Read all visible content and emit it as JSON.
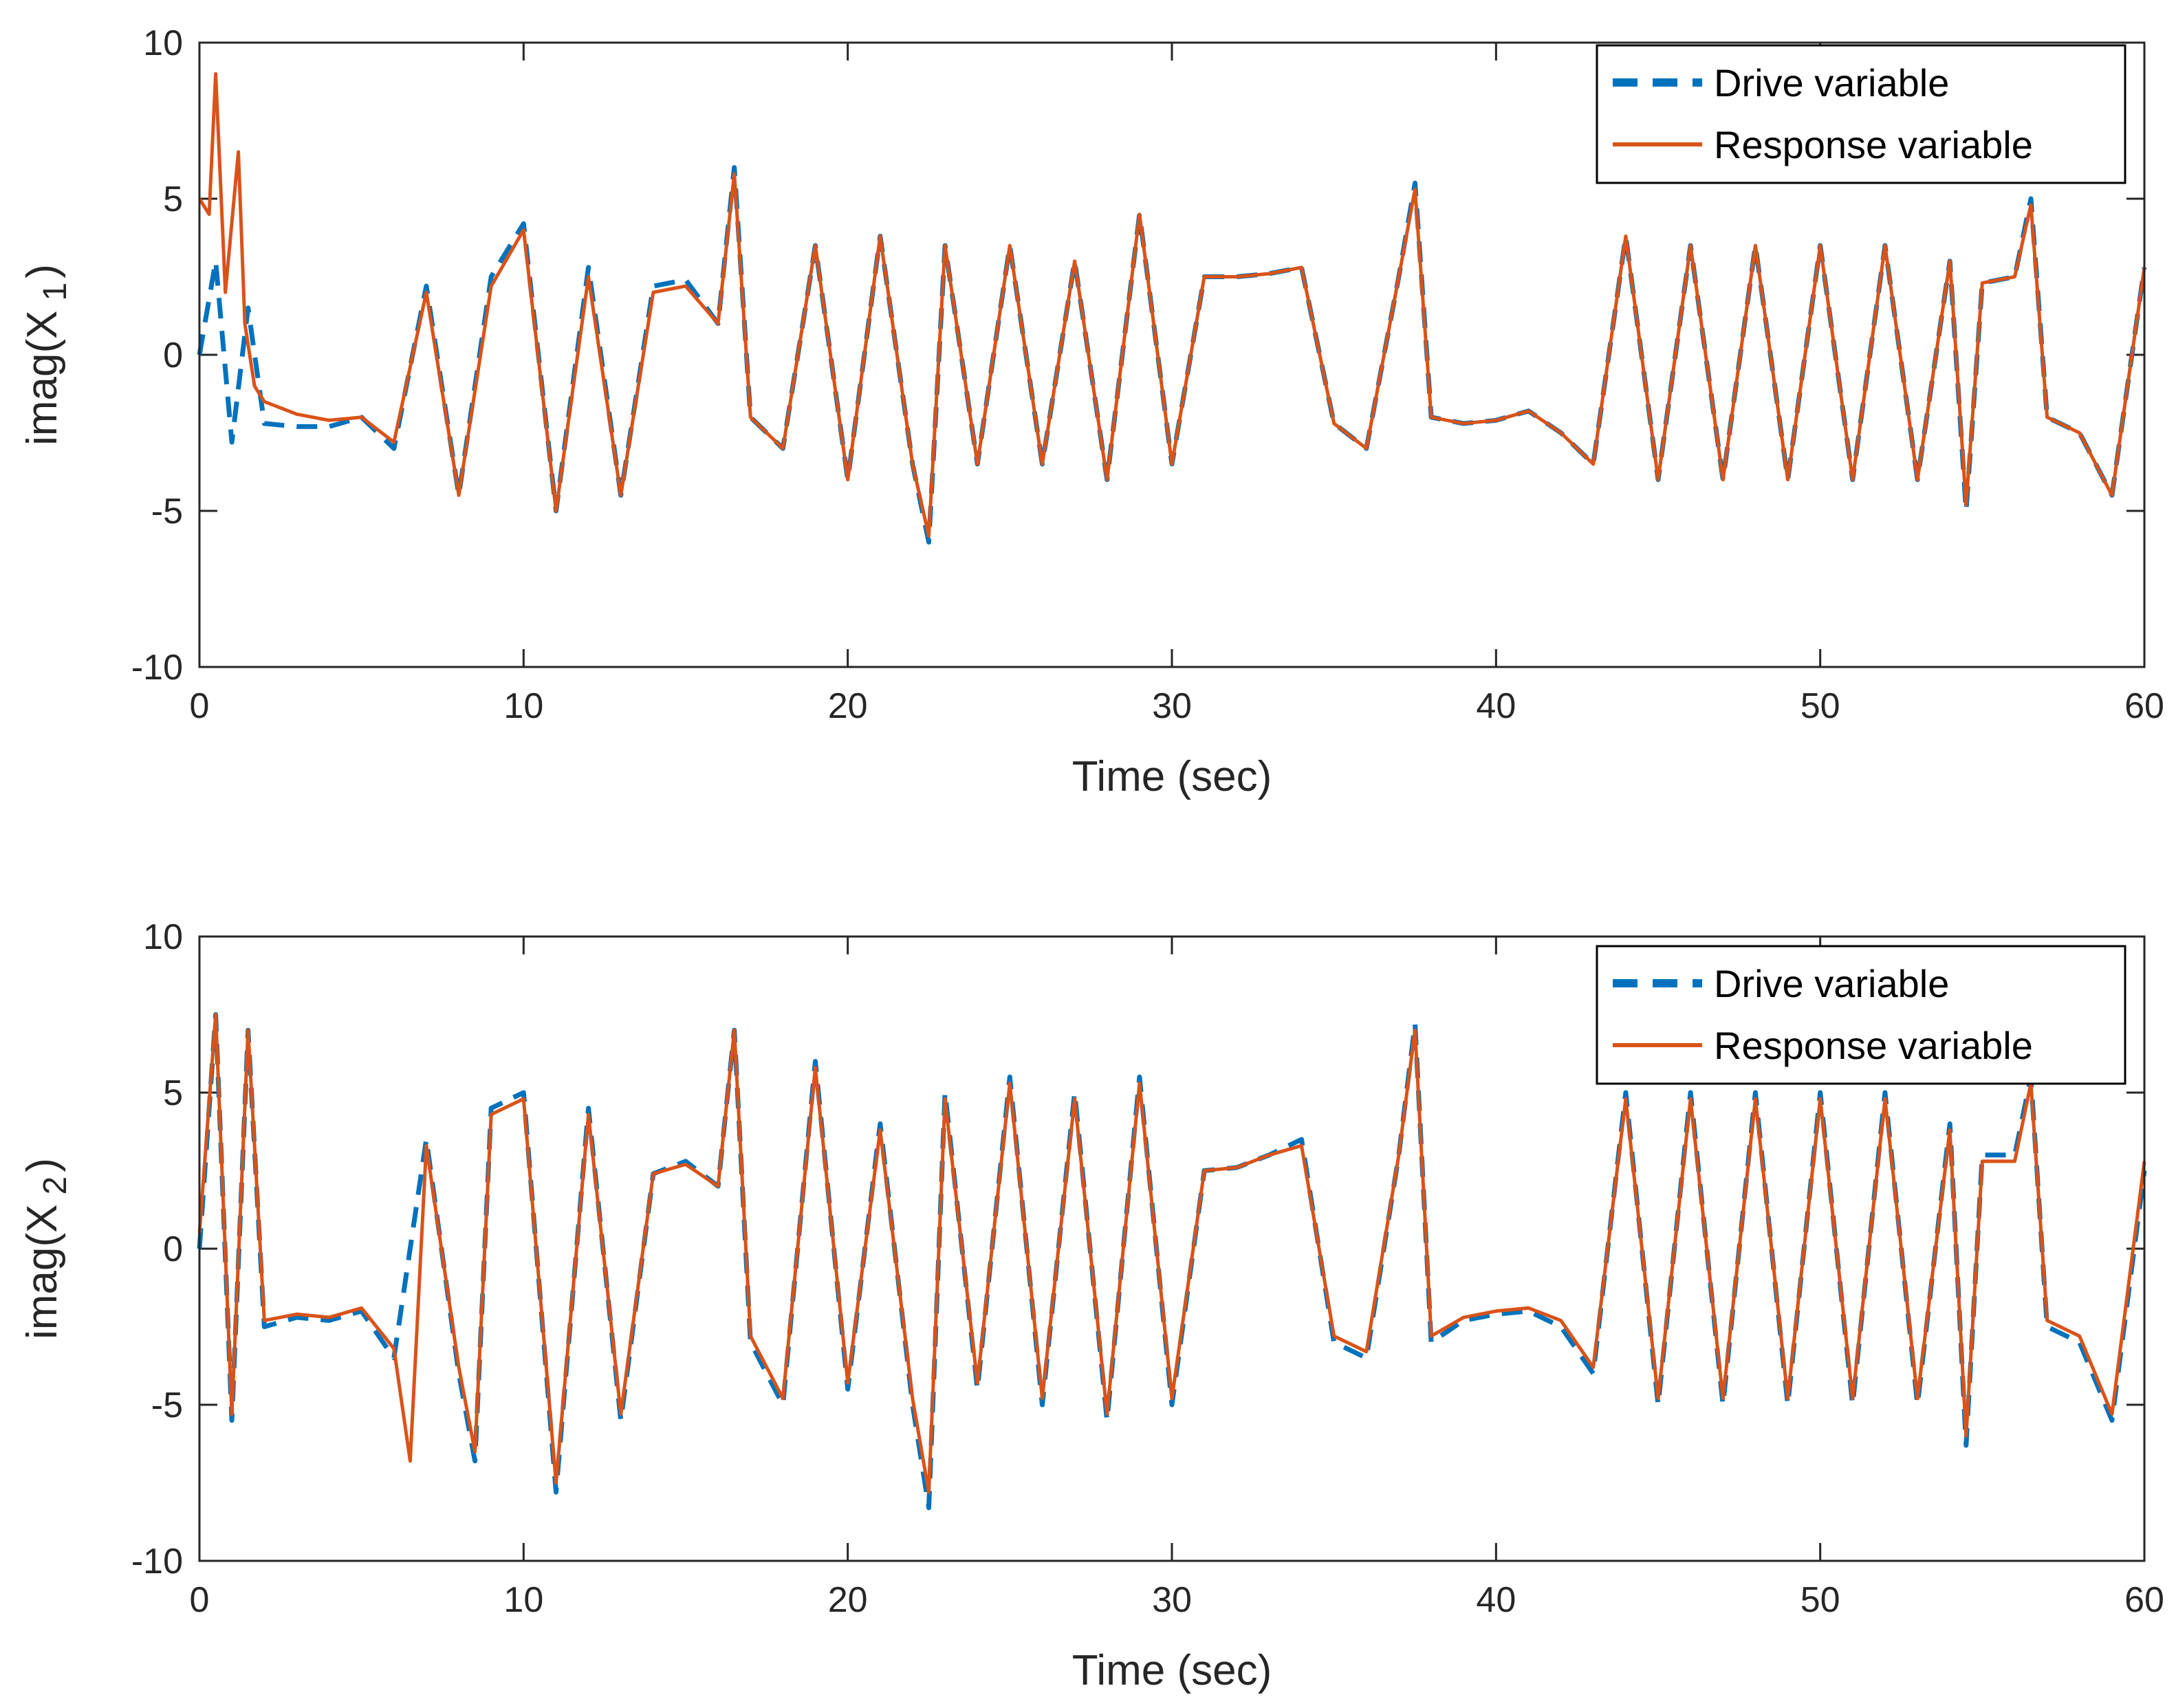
{
  "colors": {
    "drive": "#0072BD",
    "response": "#D95319",
    "axis": "#262626",
    "background": "#ffffff"
  },
  "chart_data": [
    {
      "type": "line",
      "title": "",
      "xlabel": "Time (sec)",
      "ylabel_main": "imag(X",
      "ylabel_sub": "1",
      "ylabel_close": ")",
      "xlim": [
        0,
        60
      ],
      "ylim": [
        -10,
        10
      ],
      "x_ticks": [
        "0",
        "10",
        "20",
        "30",
        "40",
        "50",
        "60"
      ],
      "y_ticks": [
        "10",
        "5",
        "0",
        "-5",
        "-10"
      ],
      "legend": {
        "position": "top-right",
        "entries": [
          "Drive variable",
          "Response variable"
        ]
      },
      "series": [
        {
          "name": "Drive variable",
          "style": "dashed",
          "x": [
            0,
            0.5,
            1.0,
            1.5,
            2,
            3,
            4,
            5,
            6,
            7,
            8,
            9,
            10,
            11,
            12,
            13,
            14,
            15,
            16,
            16.5,
            17,
            18,
            19,
            20,
            21,
            22,
            22.5,
            23,
            24,
            25,
            26,
            27,
            28,
            29,
            30,
            31,
            31.5,
            32,
            33,
            34,
            35,
            36,
            37,
            37.5,
            38,
            39,
            40,
            41,
            42,
            43,
            44,
            45,
            46,
            47,
            48,
            49,
            50,
            51,
            52,
            53,
            54,
            54.5,
            55,
            56,
            56.5,
            57,
            58,
            59,
            60
          ],
          "y": [
            0,
            3,
            -2.8,
            1.5,
            -2.2,
            -2.3,
            -2.3,
            -2.0,
            -3.0,
            2.2,
            -4.5,
            2.5,
            4.2,
            -5.0,
            2.8,
            -4.5,
            2.2,
            2.4,
            1.0,
            6.0,
            -2.0,
            -3.0,
            3.5,
            -4.0,
            3.8,
            -3.5,
            -6.0,
            3.5,
            -3.5,
            3.5,
            -3.5,
            3.0,
            -4.0,
            4.5,
            -3.5,
            2.5,
            2.5,
            2.5,
            2.6,
            2.8,
            -2.2,
            -3.0,
            2.5,
            5.5,
            -2.0,
            -2.2,
            -2.1,
            -1.8,
            -2.5,
            -3.5,
            3.8,
            -4.0,
            3.5,
            -4.0,
            3.5,
            -4.0,
            3.5,
            -4.0,
            3.5,
            -4.0,
            3.0,
            -5.0,
            2.3,
            2.5,
            5.0,
            -2.0,
            -2.5,
            -4.5,
            2.8
          ]
        },
        {
          "name": "Response variable",
          "style": "solid",
          "x": [
            0,
            0.3,
            0.5,
            0.8,
            1.2,
            1.4,
            1.7,
            2,
            3,
            4,
            5,
            6,
            7,
            8,
            9,
            10,
            11,
            12,
            13,
            14,
            15,
            16,
            16.5,
            17,
            18,
            19,
            20,
            21,
            22,
            22.5,
            23,
            24,
            25,
            26,
            27,
            28,
            29,
            30,
            31,
            31.5,
            32,
            33,
            34,
            35,
            36,
            37,
            37.5,
            38,
            39,
            40,
            41,
            42,
            43,
            44,
            45,
            46,
            47,
            48,
            49,
            50,
            51,
            52,
            53,
            54,
            54.5,
            55,
            56,
            56.5,
            57,
            58,
            59,
            60
          ],
          "y": [
            5,
            4.5,
            9,
            2.0,
            6.5,
            1.0,
            -1.0,
            -1.5,
            -1.9,
            -2.1,
            -2.0,
            -2.8,
            2.0,
            -4.5,
            2.2,
            4.0,
            -5.0,
            2.5,
            -4.5,
            2.0,
            2.2,
            1.0,
            5.8,
            -2.0,
            -3.0,
            3.5,
            -4.0,
            3.8,
            -3.5,
            -5.8,
            3.5,
            -3.5,
            3.5,
            -3.5,
            3.0,
            -4.0,
            4.5,
            -3.5,
            2.5,
            2.5,
            2.5,
            2.6,
            2.8,
            -2.2,
            -3.0,
            2.5,
            5.3,
            -2.0,
            -2.2,
            -2.1,
            -1.8,
            -2.5,
            -3.5,
            3.8,
            -4.0,
            3.5,
            -4.0,
            3.5,
            -4.0,
            3.5,
            -4.0,
            3.5,
            -4.0,
            3.0,
            -4.8,
            2.3,
            2.5,
            4.8,
            -2.0,
            -2.5,
            -4.5,
            2.8
          ]
        }
      ]
    },
    {
      "type": "line",
      "title": "",
      "xlabel": "Time (sec)",
      "ylabel_main": "imag(X",
      "ylabel_sub": "2",
      "ylabel_close": ")",
      "xlim": [
        0,
        60
      ],
      "ylim": [
        -10,
        10
      ],
      "x_ticks": [
        "0",
        "10",
        "20",
        "30",
        "40",
        "50",
        "60"
      ],
      "y_ticks": [
        "10",
        "5",
        "0",
        "-5",
        "-10"
      ],
      "legend": {
        "position": "top-right",
        "entries": [
          "Drive variable",
          "Response variable"
        ]
      },
      "series": [
        {
          "name": "Drive variable",
          "style": "dashed",
          "x": [
            0,
            0.5,
            1.0,
            1.5,
            2,
            3,
            4,
            5,
            6,
            7,
            8,
            8.5,
            9,
            10,
            11,
            12,
            13,
            14,
            15,
            16,
            16.5,
            17,
            18,
            19,
            20,
            21,
            22,
            22.5,
            23,
            24,
            25,
            26,
            27,
            28,
            29,
            30,
            31,
            32,
            33,
            34,
            35,
            36,
            37,
            37.5,
            38,
            39,
            40,
            41,
            42,
            43,
            44,
            45,
            46,
            47,
            48,
            49,
            50,
            51,
            52,
            53,
            54,
            54.5,
            55,
            56,
            56.5,
            57,
            58,
            59,
            60
          ],
          "y": [
            0,
            7.5,
            -5.5,
            7.0,
            -2.5,
            -2.2,
            -2.3,
            -2.0,
            -3.5,
            3.5,
            -4.0,
            -6.8,
            4.5,
            5.0,
            -7.8,
            4.5,
            -5.5,
            2.4,
            2.8,
            2.0,
            7.0,
            -3.0,
            -5.0,
            6.0,
            -4.5,
            4.0,
            -5.0,
            -8.3,
            5.0,
            -4.5,
            5.5,
            -5.0,
            5.0,
            -5.5,
            5.5,
            -5.0,
            2.5,
            2.6,
            3.0,
            3.5,
            -3.0,
            -3.5,
            3.0,
            7.2,
            -3.0,
            -2.3,
            -2.1,
            -2.0,
            -2.5,
            -4.0,
            5.0,
            -5.0,
            5.0,
            -5.0,
            5.0,
            -5.0,
            5.0,
            -5.0,
            5.0,
            -5.0,
            4.0,
            -6.3,
            3.0,
            3.0,
            5.5,
            -2.5,
            -3.0,
            -5.5,
            2.5
          ]
        },
        {
          "name": "Response variable",
          "style": "solid",
          "x": [
            0,
            0.5,
            1.0,
            1.5,
            2,
            3,
            4,
            5,
            6,
            6.5,
            7,
            8,
            8.5,
            9,
            10,
            11,
            12,
            13,
            14,
            15,
            16,
            16.5,
            17,
            18,
            19,
            20,
            21,
            22,
            22.5,
            23,
            24,
            25,
            26,
            27,
            28,
            29,
            30,
            31,
            32,
            33,
            34,
            35,
            36,
            37,
            37.5,
            38,
            39,
            40,
            41,
            42,
            43,
            44,
            45,
            46,
            47,
            48,
            49,
            50,
            51,
            52,
            53,
            54,
            54.5,
            55,
            56,
            56.5,
            57,
            58,
            59,
            60
          ],
          "y": [
            0.5,
            7.5,
            -5.3,
            7.0,
            -2.3,
            -2.1,
            -2.2,
            -1.9,
            -3.2,
            -6.8,
            3.3,
            -3.8,
            -6.5,
            4.3,
            4.8,
            -7.5,
            4.3,
            -5.3,
            2.4,
            2.7,
            2.0,
            7.0,
            -2.8,
            -4.8,
            5.8,
            -4.3,
            3.8,
            -4.8,
            -7.8,
            4.8,
            -4.3,
            5.3,
            -4.8,
            4.8,
            -5.3,
            5.3,
            -4.8,
            2.5,
            2.6,
            3.0,
            3.3,
            -2.8,
            -3.3,
            3.0,
            7.0,
            -2.8,
            -2.2,
            -2.0,
            -1.9,
            -2.3,
            -3.8,
            4.8,
            -4.8,
            4.8,
            -4.8,
            4.8,
            -4.8,
            4.8,
            -4.8,
            4.8,
            -4.8,
            3.8,
            -6.0,
            2.8,
            2.8,
            5.3,
            -2.3,
            -2.8,
            -5.3,
            2.8
          ]
        }
      ]
    }
  ]
}
